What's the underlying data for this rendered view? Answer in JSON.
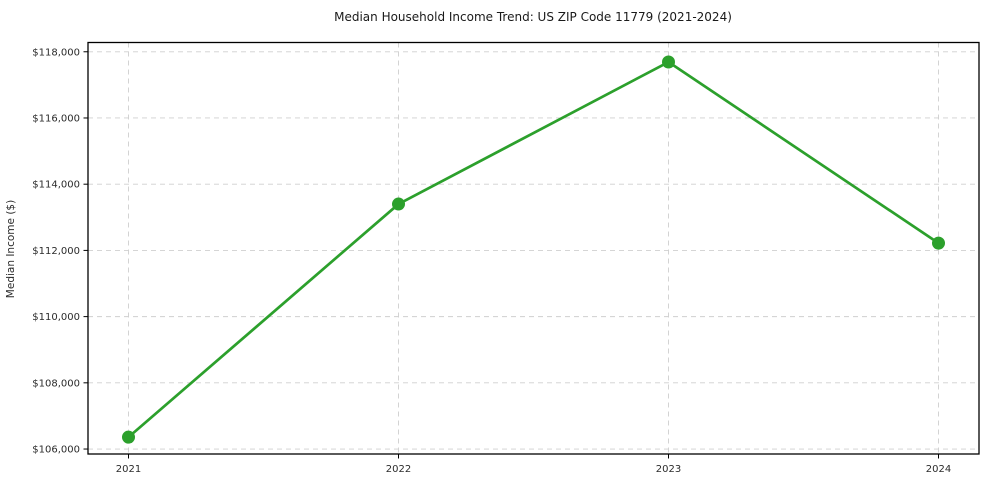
{
  "chart_data": {
    "type": "line",
    "title": "Median Household Income Trend: US ZIP Code 11779 (2021-2024)",
    "xlabel": "",
    "ylabel": "Median Income ($)",
    "x": [
      2021,
      2022,
      2023,
      2024
    ],
    "series": [
      {
        "name": "Median Household Income",
        "values": [
          106360,
          113400,
          117690,
          112220
        ]
      }
    ],
    "xticks": {
      "values": [
        2021,
        2022,
        2023,
        2024
      ],
      "labels": [
        "2021",
        "2022",
        "2023",
        "2024"
      ]
    },
    "yticks": {
      "values": [
        106000,
        108000,
        110000,
        112000,
        114000,
        116000,
        118000
      ],
      "labels": [
        "$106,000",
        "$108,000",
        "$110,000",
        "$112,000",
        "$114,000",
        "$116,000",
        "$118,000"
      ]
    },
    "xlim": [
      2020.85,
      2024.15
    ],
    "ylim": [
      105850,
      118280
    ],
    "grid": true,
    "grid_style": "dashed",
    "legend": "none",
    "line_color": "#2ca02c",
    "marker": "circle",
    "marker_radius": 6.5
  }
}
